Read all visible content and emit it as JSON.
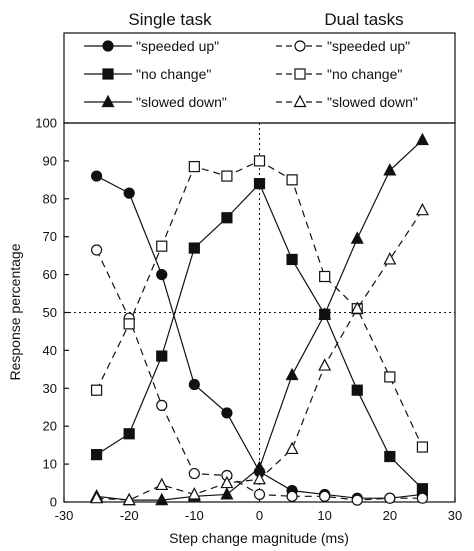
{
  "header": {
    "left": "Single task",
    "right": "Dual tasks"
  },
  "chart_data": {
    "type": "line",
    "xlabel": "Step change magnitude (ms)",
    "ylabel": "Response percentage",
    "xlim": [
      -30,
      30
    ],
    "ylim": [
      0,
      100
    ],
    "xticks": [
      -30,
      -20,
      -10,
      0,
      10,
      20,
      30
    ],
    "yticks": [
      0,
      10,
      20,
      30,
      40,
      50,
      60,
      70,
      80,
      90,
      100
    ],
    "reference_lines": {
      "x": 0,
      "y": 50,
      "style": "dotted"
    },
    "grid": false,
    "legend": "top",
    "x": [
      -25,
      -20,
      -15,
      -10,
      -5,
      0,
      5,
      10,
      15,
      20,
      25
    ],
    "series": [
      {
        "name": "\"speeded up\"",
        "group": "Single task",
        "marker": "circle",
        "filled": true,
        "dashed": false,
        "values": [
          86,
          81.5,
          60,
          31,
          23.5,
          8,
          3,
          2,
          1,
          1,
          2
        ]
      },
      {
        "name": "\"no change\"",
        "group": "Single task",
        "marker": "square",
        "filled": true,
        "dashed": false,
        "values": [
          12.5,
          18,
          38.5,
          67,
          75,
          84,
          64,
          49.5,
          29.5,
          12,
          3.5
        ]
      },
      {
        "name": "\"slowed down\"",
        "group": "Single task",
        "marker": "triangle",
        "filled": true,
        "dashed": false,
        "values": [
          1.5,
          0.5,
          0.5,
          1.5,
          2,
          9,
          33.5,
          49.5,
          69.5,
          87.5,
          95.5
        ]
      },
      {
        "name": "\"speeded up\"",
        "group": "Dual tasks",
        "marker": "circle",
        "filled": false,
        "dashed": true,
        "values": [
          66.5,
          48.5,
          25.5,
          7.5,
          7,
          2,
          1.5,
          1.5,
          0.5,
          1,
          1
        ]
      },
      {
        "name": "\"no change\"",
        "group": "Dual tasks",
        "marker": "square",
        "filled": false,
        "dashed": true,
        "values": [
          29.5,
          47,
          67.5,
          88.5,
          86,
          90,
          85,
          59.5,
          51,
          33,
          14.5
        ]
      },
      {
        "name": "\"slowed down\"",
        "group": "Dual tasks",
        "marker": "triangle",
        "filled": false,
        "dashed": true,
        "values": [
          1,
          0.5,
          4.5,
          2,
          5,
          6,
          14,
          36,
          51,
          64,
          77
        ]
      }
    ]
  }
}
